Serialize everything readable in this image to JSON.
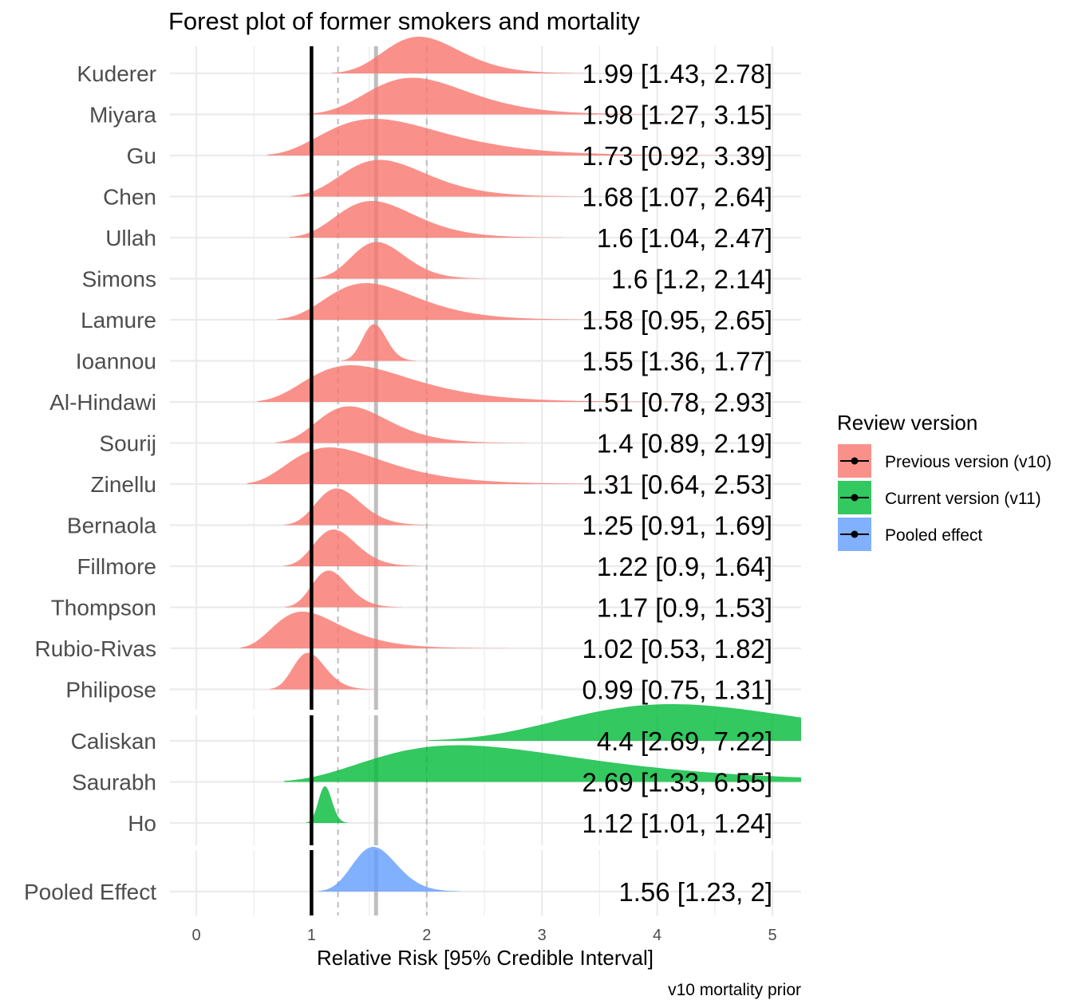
{
  "chart_data": {
    "type": "forest-density",
    "title": "Forest plot of former smokers and mortality",
    "xlabel": "Relative Risk [95% Credible Interval]",
    "caption": "v10 mortality prior",
    "xlim": [
      0,
      5
    ],
    "x_ticks": [
      0,
      1,
      2,
      3,
      4,
      5
    ],
    "reference_line": 1,
    "pooled_mean": 1.56,
    "pooled_ci": [
      1.23,
      2
    ],
    "grid": true,
    "legend": {
      "title": "Review version",
      "position": "right",
      "entries": [
        {
          "key": "previous",
          "label": "Previous version (v10)",
          "color": "#F8766D"
        },
        {
          "key": "current",
          "label": "Current version (v11)",
          "color": "#00BA38"
        },
        {
          "key": "pooled",
          "label": "Pooled effect",
          "color": "#619CFF"
        }
      ]
    },
    "groups": [
      {
        "key": "previous",
        "studies": [
          {
            "name": "Kuderer",
            "mean": 1.99,
            "lower": 1.43,
            "upper": 2.78,
            "label": "1.99 [1.43, 2.78]"
          },
          {
            "name": "Miyara",
            "mean": 1.98,
            "lower": 1.27,
            "upper": 3.15,
            "label": "1.98 [1.27, 3.15]"
          },
          {
            "name": "Gu",
            "mean": 1.73,
            "lower": 0.92,
            "upper": 3.39,
            "label": "1.73 [0.92, 3.39]"
          },
          {
            "name": "Chen",
            "mean": 1.68,
            "lower": 1.07,
            "upper": 2.64,
            "label": "1.68 [1.07, 2.64]"
          },
          {
            "name": "Ullah",
            "mean": 1.6,
            "lower": 1.04,
            "upper": 2.47,
            "label": "1.6 [1.04, 2.47]"
          },
          {
            "name": "Simons",
            "mean": 1.6,
            "lower": 1.2,
            "upper": 2.14,
            "label": "1.6 [1.2, 2.14]"
          },
          {
            "name": "Lamure",
            "mean": 1.58,
            "lower": 0.95,
            "upper": 2.65,
            "label": "1.58 [0.95, 2.65]"
          },
          {
            "name": "Ioannou",
            "mean": 1.55,
            "lower": 1.36,
            "upper": 1.77,
            "label": "1.55 [1.36, 1.77]"
          },
          {
            "name": "Al-Hindawi",
            "mean": 1.51,
            "lower": 0.78,
            "upper": 2.93,
            "label": "1.51 [0.78, 2.93]"
          },
          {
            "name": "Sourij",
            "mean": 1.4,
            "lower": 0.89,
            "upper": 2.19,
            "label": "1.4 [0.89, 2.19]"
          },
          {
            "name": "Zinellu",
            "mean": 1.31,
            "lower": 0.64,
            "upper": 2.53,
            "label": "1.31 [0.64, 2.53]"
          },
          {
            "name": "Bernaola",
            "mean": 1.25,
            "lower": 0.91,
            "upper": 1.69,
            "label": "1.25 [0.91, 1.69]"
          },
          {
            "name": "Fillmore",
            "mean": 1.22,
            "lower": 0.9,
            "upper": 1.64,
            "label": "1.22 [0.9, 1.64]"
          },
          {
            "name": "Thompson",
            "mean": 1.17,
            "lower": 0.9,
            "upper": 1.53,
            "label": "1.17 [0.9, 1.53]"
          },
          {
            "name": "Rubio-Rivas",
            "mean": 1.02,
            "lower": 0.53,
            "upper": 1.82,
            "label": "1.02 [0.53, 1.82]"
          },
          {
            "name": "Philipose",
            "mean": 0.99,
            "lower": 0.75,
            "upper": 1.31,
            "label": "0.99 [0.75, 1.31]"
          }
        ]
      },
      {
        "key": "current",
        "studies": [
          {
            "name": "Caliskan",
            "mean": 4.4,
            "lower": 2.69,
            "upper": 7.22,
            "label": "4.4 [2.69, 7.22]"
          },
          {
            "name": "Saurabh",
            "mean": 2.69,
            "lower": 1.33,
            "upper": 6.55,
            "label": "2.69 [1.33, 6.55]"
          },
          {
            "name": "Ho",
            "mean": 1.12,
            "lower": 1.01,
            "upper": 1.24,
            "label": "1.12 [1.01, 1.24]"
          }
        ]
      },
      {
        "key": "pooled",
        "studies": [
          {
            "name": "Pooled Effect",
            "mean": 1.56,
            "lower": 1.23,
            "upper": 2,
            "label": "1.56 [1.23, 2]"
          }
        ]
      }
    ]
  }
}
